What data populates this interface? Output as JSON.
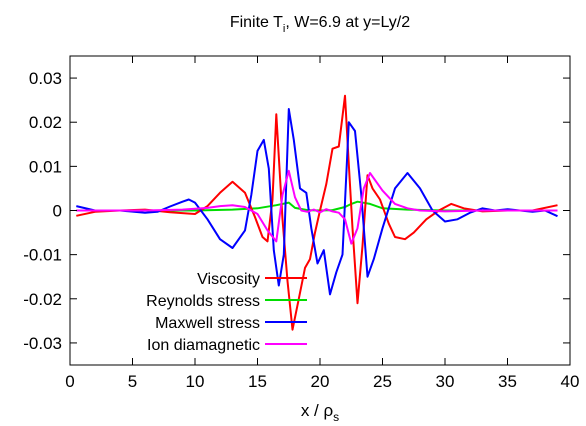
{
  "chart_data": {
    "type": "line",
    "title": {
      "prefix": "Finite T",
      "sub": "i",
      "suffix": ", W=6.9 at y=Ly/2"
    },
    "xlabel": {
      "prefix": "x / ρ",
      "sub": "s"
    },
    "ylabel": "",
    "xlim": [
      0,
      40
    ],
    "ylim": [
      -0.035,
      0.035
    ],
    "xticks": [
      0,
      5,
      10,
      15,
      20,
      25,
      30,
      35,
      40
    ],
    "yticks": [
      0.03,
      0.02,
      0.01,
      0,
      -0.01,
      -0.02,
      -0.03
    ],
    "ytick_labels": [
      "0.03",
      "0.02",
      "0.01",
      "0",
      "-0.01",
      "-0.02",
      "-0.03"
    ],
    "grid": false,
    "legend_position": "bottom-left",
    "series": [
      {
        "name": "Viscosity",
        "color": "#ff0000",
        "x": [
          0.5,
          2,
          4,
          6,
          8,
          10,
          11,
          12,
          13,
          14,
          14.8,
          15.4,
          15.8,
          16.2,
          16.5,
          17,
          17.4,
          17.8,
          18.3,
          18.8,
          19.2,
          19.6,
          20,
          20.5,
          21,
          21.5,
          22,
          22.3,
          22.6,
          23,
          23.4,
          23.8,
          24.2,
          24.8,
          25.5,
          26,
          26.8,
          27.5,
          28.5,
          29.5,
          30.5,
          31.5,
          33,
          35,
          37,
          39
        ],
        "values": [
          -0.0012,
          -0.0003,
          0.0,
          0.0002,
          -0.0004,
          -0.0008,
          0.001,
          0.004,
          0.0065,
          0.004,
          -0.0015,
          -0.006,
          -0.007,
          0.0025,
          0.0218,
          -0.002,
          -0.016,
          -0.027,
          -0.02,
          -0.013,
          -0.011,
          -0.005,
          0.0,
          0.006,
          0.014,
          0.0145,
          0.026,
          0.0105,
          -0.004,
          -0.021,
          -0.008,
          0.008,
          0.005,
          0.0025,
          -0.003,
          -0.006,
          -0.0065,
          -0.005,
          -0.002,
          0.0,
          0.0015,
          0.0005,
          -0.0002,
          0.0,
          0.0,
          0.0012
        ]
      },
      {
        "name": "Reynolds stress",
        "color": "#00dd00",
        "x": [
          0.5,
          5,
          10,
          13,
          15,
          16.5,
          17.5,
          18,
          19,
          20,
          21,
          22,
          22.5,
          23,
          24,
          25,
          27,
          30,
          35,
          39
        ],
        "values": [
          0.0,
          0.0,
          0.0,
          0.0002,
          0.0005,
          0.0012,
          0.0018,
          0.0006,
          0.0001,
          0.0,
          0.0001,
          0.0008,
          0.0015,
          0.002,
          0.0015,
          0.0005,
          0.0002,
          0.0,
          0.0,
          0.0
        ]
      },
      {
        "name": "Maxwell stress",
        "color": "#0000ff",
        "x": [
          0.5,
          2,
          4,
          6,
          7,
          8,
          9,
          9.5,
          10,
          11,
          12,
          13,
          14,
          14.5,
          15,
          15.5,
          15.9,
          16.3,
          16.7,
          17.1,
          17.5,
          17.9,
          18.4,
          18.9,
          19.3,
          19.8,
          20.3,
          20.8,
          21.3,
          21.8,
          22.3,
          22.8,
          23.3,
          23.8,
          24.3,
          25,
          26,
          27,
          28,
          29,
          30,
          31,
          32,
          33,
          34,
          35,
          36,
          37,
          38,
          39
        ],
        "values": [
          0.001,
          0.0,
          0.0,
          -0.0005,
          -0.0003,
          0.0009,
          0.002,
          0.0025,
          0.0018,
          -0.002,
          -0.0065,
          -0.0085,
          -0.0045,
          0.0035,
          0.0135,
          0.016,
          0.0095,
          -0.009,
          -0.017,
          -0.01,
          0.023,
          0.016,
          0.005,
          0.004,
          -0.004,
          -0.012,
          -0.009,
          -0.019,
          -0.014,
          -0.01,
          0.02,
          0.018,
          0.0035,
          -0.015,
          -0.011,
          -0.004,
          0.005,
          0.0085,
          0.005,
          0.0,
          -0.0025,
          -0.002,
          -0.0005,
          0.0005,
          0.0,
          0.0003,
          0.0,
          -0.0003,
          0.0,
          -0.0013
        ]
      },
      {
        "name": "Ion diamagnetic",
        "color": "#ff00ff",
        "x": [
          0.5,
          3,
          6,
          9,
          11,
          12,
          13,
          14,
          15,
          15.8,
          16.5,
          17,
          17.5,
          18,
          18.5,
          19,
          19.5,
          20,
          20.5,
          21,
          21.5,
          22,
          22.5,
          23,
          23.5,
          24,
          25,
          26,
          27,
          28,
          30,
          33,
          36,
          39
        ],
        "values": [
          0.0,
          0.0,
          0.0,
          0.0002,
          0.0006,
          0.001,
          0.0012,
          0.0008,
          -0.0008,
          -0.0045,
          -0.007,
          0.0035,
          0.009,
          0.003,
          0.0,
          -0.0003,
          0.0002,
          -0.0004,
          0.0003,
          -0.0002,
          -0.0005,
          -0.002,
          -0.0075,
          -0.004,
          0.005,
          0.0085,
          0.0045,
          0.0015,
          0.0005,
          0.0,
          -0.0002,
          0.0,
          0.0,
          0.0
        ]
      }
    ]
  }
}
